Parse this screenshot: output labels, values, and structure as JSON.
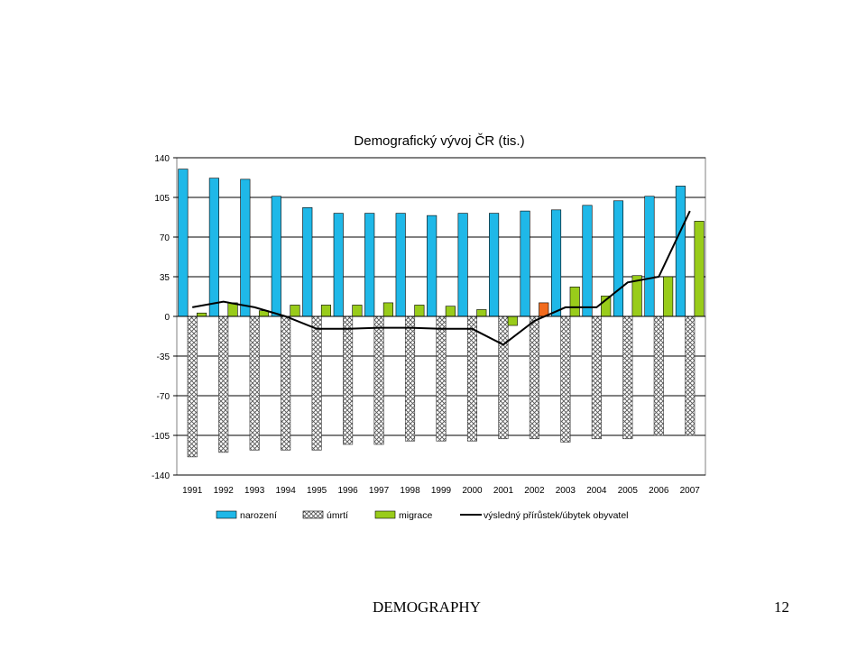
{
  "slide": {
    "footer_title": "DEMOGRAPHY",
    "page_number": "12"
  },
  "colors": {
    "narozeni": "#1FB8E8",
    "migrace": "#99CC1A",
    "migrace_highlight": "#F26B1D",
    "line": "#000000",
    "gridline": "#000000"
  },
  "chart_data": {
    "type": "bar",
    "title": "Demografický vývoj ČR (tis.)",
    "xlabel": "",
    "ylabel": "",
    "ylim": [
      -140,
      140
    ],
    "yticks": [
      "140",
      "105",
      "70",
      "35",
      "0",
      "-35",
      "-70",
      "-105",
      "-140"
    ],
    "yticks_values": [
      140,
      105,
      70,
      35,
      0,
      -35,
      -70,
      -105,
      -140
    ],
    "grid": true,
    "legend_position": "bottom",
    "categories": [
      "1991",
      "1992",
      "1993",
      "1994",
      "1995",
      "1996",
      "1997",
      "1998",
      "1999",
      "2000",
      "2001",
      "2002",
      "2003",
      "2004",
      "2005",
      "2006",
      "2007"
    ],
    "series": [
      {
        "name": "narození",
        "kind": "bar",
        "values": [
          130,
          122,
          121,
          106,
          96,
          91,
          91,
          91,
          89,
          91,
          91,
          93,
          94,
          98,
          102,
          106,
          115
        ]
      },
      {
        "name": "úmrtí",
        "kind": "bar",
        "values": [
          -124,
          -120,
          -118,
          -118,
          -118,
          -113,
          -113,
          -110,
          -110,
          -110,
          -108,
          -108,
          -111,
          -108,
          -108,
          -105,
          -105
        ]
      },
      {
        "name": "migrace",
        "kind": "bar",
        "values": [
          3,
          12,
          5,
          10,
          10,
          10,
          12,
          10,
          9,
          6,
          -8,
          12,
          26,
          18,
          36,
          35,
          84
        ]
      },
      {
        "name": "výsledný přírůstek/úbytek obyvatel",
        "kind": "line",
        "values": [
          8,
          13,
          8,
          0,
          -11,
          -11,
          -10,
          -10,
          -11,
          -11,
          -25,
          -4,
          8,
          8,
          30,
          35,
          93
        ]
      }
    ],
    "highlight": {
      "series": "migrace",
      "category": "2002"
    }
  }
}
